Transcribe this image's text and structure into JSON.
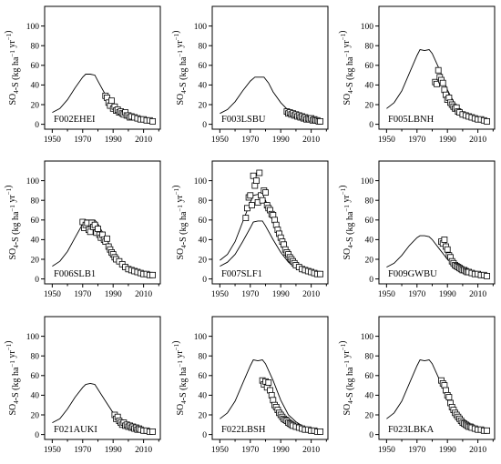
{
  "figure": {
    "ylabel_main": "SO",
    "ylabel_sub": "4",
    "ylabel_rest": "-S (kg ha",
    "ylabel_exp": "−1",
    "ylabel_yr": " yr",
    "ylabel_close": ")"
  },
  "chart_data": [
    {
      "type": "line",
      "site": "F002EHEI",
      "xlim": [
        1945,
        2021
      ],
      "ylim": [
        -5,
        120
      ],
      "xticks": [
        1950,
        1970,
        1990,
        2010
      ],
      "yticks": [
        0,
        20,
        40,
        60,
        80,
        100
      ],
      "series": [
        {
          "kind": "line",
          "x": [
            1950,
            1955,
            1960,
            1965,
            1970,
            1972,
            1975,
            1978,
            1980,
            1985,
            1990,
            1995,
            2000,
            2005,
            2010,
            2015,
            2017
          ],
          "y": [
            12,
            16,
            25,
            37,
            48,
            51,
            51,
            50,
            44,
            30,
            20,
            13,
            9,
            6,
            4.5,
            3.5,
            3
          ]
        }
      ],
      "observed": {
        "x": [
          1985,
          1986,
          1987,
          1988,
          1989,
          1990,
          1991,
          1992,
          1993,
          1994,
          1995,
          1996,
          1997,
          1998,
          1999,
          2000,
          2001,
          2002,
          2004,
          2006,
          2008,
          2010,
          2012,
          2014,
          2016
        ],
        "y": [
          29,
          27,
          22,
          19,
          24,
          16,
          18,
          14,
          15,
          12,
          13,
          11,
          10,
          12,
          9,
          9,
          7,
          8,
          7,
          6,
          5,
          5,
          4,
          4,
          3
        ]
      }
    },
    {
      "type": "line",
      "site": "F003LSBU",
      "xlim": [
        1945,
        2021
      ],
      "ylim": [
        -5,
        120
      ],
      "xticks": [
        1950,
        1970,
        1990,
        2010
      ],
      "yticks": [
        0,
        20,
        40,
        60,
        80,
        100
      ],
      "series": [
        {
          "kind": "line",
          "x": [
            1950,
            1955,
            1960,
            1965,
            1970,
            1973,
            1976,
            1979,
            1982,
            1985,
            1990,
            1995,
            2000,
            2005,
            2010,
            2015,
            2017
          ],
          "y": [
            11,
            15,
            23,
            34,
            44,
            48,
            48,
            48,
            42,
            33,
            22,
            14,
            9,
            6,
            4.5,
            3.5,
            3
          ]
        }
      ],
      "observed": {
        "x": [
          1994,
          1995,
          1996,
          1997,
          1998,
          1999,
          2000,
          2001,
          2002,
          2003,
          2004,
          2005,
          2006,
          2007,
          2008,
          2009,
          2010,
          2011,
          2012,
          2013,
          2014,
          2015,
          2016
        ],
        "y": [
          13,
          11,
          12,
          10,
          11,
          9,
          10,
          8,
          9,
          7,
          8,
          6,
          7,
          5,
          6,
          5,
          6,
          4,
          5,
          4,
          4,
          3,
          3
        ]
      }
    },
    {
      "type": "line",
      "site": "F005LBNH",
      "xlim": [
        1945,
        2021
      ],
      "ylim": [
        -5,
        120
      ],
      "xticks": [
        1950,
        1970,
        1990,
        2010
      ],
      "yticks": [
        0,
        20,
        40,
        60,
        80,
        100
      ],
      "series": [
        {
          "kind": "line",
          "x": [
            1950,
            1955,
            1960,
            1965,
            1970,
            1972,
            1975,
            1978,
            1980,
            1985,
            1990,
            1995,
            2000,
            2005,
            2010,
            2015,
            2017
          ],
          "y": [
            16,
            22,
            34,
            52,
            70,
            76,
            75,
            76,
            72,
            55,
            35,
            20,
            13,
            8,
            5,
            4,
            3.5
          ]
        }
      ],
      "observed": {
        "x": [
          1982,
          1983,
          1984,
          1985,
          1986,
          1987,
          1988,
          1989,
          1990,
          1991,
          1992,
          1993,
          1994,
          1995,
          1996,
          1997,
          1998,
          2000,
          2002,
          2004,
          2006,
          2008,
          2010,
          2012,
          2014,
          2016
        ],
        "y": [
          43,
          41,
          55,
          48,
          45,
          42,
          35,
          30,
          25,
          27,
          22,
          20,
          18,
          16,
          17,
          13,
          12,
          10,
          9,
          8,
          7,
          6,
          5,
          5,
          4,
          3
        ]
      }
    },
    {
      "type": "line",
      "site": "F006SLB1",
      "xlim": [
        1945,
        2021
      ],
      "ylim": [
        -5,
        120
      ],
      "xticks": [
        1950,
        1970,
        1990,
        2010
      ],
      "yticks": [
        0,
        20,
        40,
        60,
        80,
        100
      ],
      "series": [
        {
          "kind": "line",
          "x": [
            1950,
            1955,
            1960,
            1965,
            1970,
            1972,
            1975,
            1978,
            1980,
            1985,
            1990,
            1995,
            2000,
            2005,
            2010,
            2015,
            2017
          ],
          "y": [
            13,
            18,
            28,
            42,
            56,
            60,
            60,
            60,
            56,
            42,
            28,
            17,
            11,
            7,
            5,
            4,
            3.5
          ]
        }
      ],
      "observed": {
        "x": [
          1970,
          1971,
          1972,
          1973,
          1974,
          1975,
          1976,
          1977,
          1978,
          1979,
          1980,
          1981,
          1982,
          1983,
          1984,
          1985,
          1986,
          1987,
          1988,
          1989,
          1990,
          1991,
          1992,
          1994,
          1996,
          1998,
          2000,
          2002,
          2004,
          2006,
          2008,
          2010,
          2012,
          2014,
          2016
        ],
        "y": [
          58,
          52,
          55,
          57,
          50,
          48,
          57,
          53,
          55,
          47,
          51,
          45,
          42,
          45,
          40,
          38,
          41,
          33,
          30,
          27,
          25,
          22,
          20,
          18,
          15,
          12,
          10,
          9,
          8,
          7,
          6,
          5,
          5,
          4,
          4
        ]
      }
    },
    {
      "type": "line",
      "site": "F007SLF1",
      "xlim": [
        1945,
        2021
      ],
      "ylim": [
        -5,
        120
      ],
      "xticks": [
        1950,
        1970,
        1990,
        2010
      ],
      "yticks": [
        0,
        20,
        40,
        60,
        80,
        100
      ],
      "series": [
        {
          "kind": "line",
          "x": [
            1950,
            1955,
            1960,
            1965,
            1970,
            1972,
            1975,
            1978,
            1980,
            1985,
            1990,
            1995,
            2000,
            2005,
            2010,
            2015,
            2017
          ],
          "y": [
            19,
            25,
            38,
            58,
            78,
            85,
            86,
            85,
            80,
            58,
            38,
            23,
            14,
            9,
            6,
            5,
            4.5
          ]
        },
        {
          "kind": "line",
          "x": [
            1950,
            1955,
            1960,
            1965,
            1970,
            1972,
            1975,
            1978,
            1980,
            1985,
            1990,
            1995,
            2000,
            2005,
            2010,
            2015,
            2017
          ],
          "y": [
            13,
            17,
            25,
            38,
            52,
            58,
            59,
            59,
            54,
            40,
            27,
            17,
            11,
            7,
            5,
            4,
            3.5
          ]
        }
      ],
      "observed": {
        "x": [
          1967,
          1968,
          1969,
          1970,
          1971,
          1972,
          1973,
          1974,
          1975,
          1976,
          1977,
          1978,
          1979,
          1980,
          1981,
          1982,
          1983,
          1984,
          1985,
          1986,
          1987,
          1988,
          1989,
          1990,
          1991,
          1992,
          1993,
          1994,
          1995,
          1996,
          1997,
          1998,
          1999,
          2000,
          2002,
          2004,
          2006,
          2008,
          2010,
          2012,
          2014,
          2016
        ],
        "y": [
          62,
          72,
          83,
          85,
          75,
          105,
          95,
          100,
          78,
          108,
          85,
          80,
          90,
          88,
          75,
          72,
          70,
          66,
          65,
          60,
          55,
          50,
          46,
          42,
          38,
          35,
          30,
          27,
          25,
          22,
          20,
          18,
          16,
          14,
          12,
          10,
          9,
          8,
          7,
          6,
          5,
          5
        ]
      }
    },
    {
      "type": "line",
      "site": "F009GWBU",
      "xlim": [
        1945,
        2021
      ],
      "ylim": [
        -5,
        120
      ],
      "xticks": [
        1950,
        1970,
        1990,
        2010
      ],
      "yticks": [
        0,
        20,
        40,
        60,
        80,
        100
      ],
      "series": [
        {
          "kind": "line",
          "x": [
            1950,
            1955,
            1960,
            1965,
            1970,
            1972,
            1975,
            1978,
            1980,
            1985,
            1990,
            1995,
            2000,
            2005,
            2010,
            2015,
            2017
          ],
          "y": [
            12,
            16,
            24,
            34,
            42,
            44,
            44,
            43,
            40,
            30,
            20,
            13,
            9,
            6,
            4.5,
            3.5,
            3
          ]
        }
      ],
      "observed": {
        "x": [
          1986,
          1987,
          1988,
          1989,
          1990,
          1991,
          1992,
          1993,
          1994,
          1995,
          1996,
          1997,
          1998,
          1999,
          2000,
          2001,
          2002,
          2003,
          2004,
          2006,
          2008,
          2010,
          2012,
          2014,
          2016
        ],
        "y": [
          38,
          36,
          40,
          33,
          30,
          24,
          22,
          18,
          16,
          14,
          13,
          12,
          11,
          10,
          9,
          9,
          8,
          7,
          7,
          6,
          5,
          5,
          4,
          4,
          3
        ]
      }
    },
    {
      "type": "line",
      "site": "F021AUKI",
      "xlim": [
        1945,
        2021
      ],
      "ylim": [
        -5,
        120
      ],
      "xticks": [
        1950,
        1970,
        1990,
        2010
      ],
      "yticks": [
        0,
        20,
        40,
        60,
        80,
        100
      ],
      "series": [
        {
          "kind": "line",
          "x": [
            1950,
            1955,
            1960,
            1965,
            1970,
            1972,
            1975,
            1978,
            1980,
            1985,
            1990,
            1995,
            2000,
            2005,
            2010,
            2015,
            2017
          ],
          "y": [
            12,
            16,
            26,
            38,
            48,
            51,
            52,
            51,
            46,
            34,
            22,
            14,
            9,
            6,
            4.5,
            3.5,
            3
          ]
        }
      ],
      "observed": {
        "x": [
          1991,
          1992,
          1993,
          1994,
          1995,
          1996,
          1997,
          1998,
          1999,
          2000,
          2001,
          2002,
          2003,
          2004,
          2005,
          2006,
          2007,
          2008,
          2010,
          2012,
          2014,
          2016
        ],
        "y": [
          20,
          16,
          18,
          14,
          12,
          10,
          12,
          9,
          10,
          8,
          9,
          7,
          8,
          6,
          7,
          5,
          6,
          5,
          4,
          4,
          3,
          3
        ]
      }
    },
    {
      "type": "line",
      "site": "F022LBSH",
      "xlim": [
        1945,
        2021
      ],
      "ylim": [
        -5,
        120
      ],
      "xticks": [
        1950,
        1970,
        1990,
        2010
      ],
      "yticks": [
        0,
        20,
        40,
        60,
        80,
        100
      ],
      "series": [
        {
          "kind": "line",
          "x": [
            1950,
            1955,
            1960,
            1965,
            1970,
            1972,
            1975,
            1978,
            1980,
            1985,
            1990,
            1995,
            2000,
            2005,
            2010,
            2015,
            2017
          ],
          "y": [
            16,
            22,
            34,
            52,
            70,
            76,
            75,
            76,
            72,
            55,
            35,
            20,
            13,
            8,
            5,
            4,
            3.5
          ]
        }
      ],
      "observed": {
        "x": [
          1978,
          1979,
          1980,
          1981,
          1982,
          1983,
          1984,
          1985,
          1986,
          1987,
          1988,
          1989,
          1990,
          1991,
          1992,
          1993,
          1994,
          1995,
          1996,
          1997,
          1998,
          2000,
          2002,
          2004,
          2006,
          2008,
          2010,
          2012,
          2014,
          2016
        ],
        "y": [
          55,
          51,
          54,
          48,
          53,
          45,
          40,
          35,
          30,
          28,
          25,
          22,
          20,
          18,
          16,
          15,
          14,
          12,
          11,
          10,
          9,
          8,
          7,
          6,
          5,
          5,
          4,
          4,
          3,
          3
        ]
      }
    },
    {
      "type": "line",
      "site": "F023LBKA",
      "xlim": [
        1945,
        2021
      ],
      "ylim": [
        -5,
        120
      ],
      "xticks": [
        1950,
        1970,
        1990,
        2010
      ],
      "yticks": [
        0,
        20,
        40,
        60,
        80,
        100
      ],
      "series": [
        {
          "kind": "line",
          "x": [
            1950,
            1955,
            1960,
            1965,
            1970,
            1972,
            1975,
            1978,
            1980,
            1985,
            1990,
            1995,
            2000,
            2005,
            2010,
            2015,
            2017
          ],
          "y": [
            16,
            22,
            34,
            52,
            70,
            76,
            75,
            76,
            72,
            55,
            35,
            20,
            13,
            8,
            5,
            4,
            3.5
          ]
        }
      ],
      "observed": {
        "x": [
          1986,
          1987,
          1988,
          1989,
          1990,
          1991,
          1992,
          1993,
          1994,
          1995,
          1996,
          1997,
          1998,
          1999,
          2000,
          2001,
          2002,
          2003,
          2004,
          2005,
          2006,
          2008,
          2010,
          2012,
          2014,
          2016
        ],
        "y": [
          55,
          52,
          50,
          45,
          40,
          38,
          32,
          28,
          25,
          22,
          20,
          18,
          16,
          14,
          12,
          11,
          10,
          9,
          8,
          8,
          7,
          6,
          5,
          5,
          4,
          4
        ]
      }
    }
  ]
}
